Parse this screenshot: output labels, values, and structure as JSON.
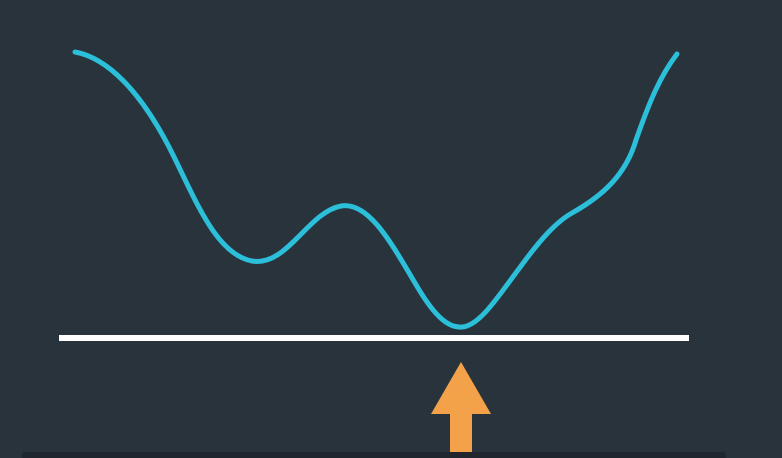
{
  "colors": {
    "background": "#29333c",
    "curve": "#2bbfd9",
    "baseline": "#ffffff",
    "arrow": "#f4a24a",
    "bottom_strip": "#1f262d"
  },
  "icons": {
    "arrow": "arrow-up-icon"
  },
  "diagram": {
    "description_visible_text": ""
  }
}
